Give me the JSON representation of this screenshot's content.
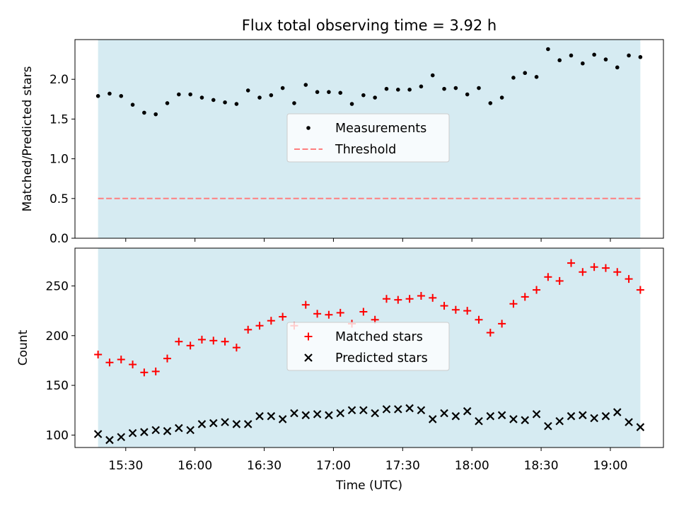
{
  "chart_data": {
    "type": "scatter",
    "title": "Flux total observing time = 3.92 h",
    "xlabel": "Time (UTC)",
    "x_tick_labels": [
      "15:30",
      "16:00",
      "16:30",
      "17:00",
      "17:30",
      "18:00",
      "18:30",
      "19:00"
    ],
    "times": [
      "15:18",
      "15:23",
      "15:28",
      "15:33",
      "15:38",
      "15:43",
      "15:48",
      "15:53",
      "15:58",
      "16:03",
      "16:08",
      "16:13",
      "16:18",
      "16:23",
      "16:28",
      "16:33",
      "16:38",
      "16:43",
      "16:48",
      "16:53",
      "16:58",
      "17:03",
      "17:08",
      "17:13",
      "17:18",
      "17:23",
      "17:28",
      "17:33",
      "17:38",
      "17:43",
      "17:48",
      "17:53",
      "17:58",
      "18:03",
      "18:08",
      "18:13",
      "18:18",
      "18:23",
      "18:28",
      "18:33",
      "18:38",
      "18:43",
      "18:48",
      "18:53",
      "18:58",
      "19:03",
      "19:08",
      "19:13"
    ],
    "observing_window": {
      "start": "15:18",
      "end": "19:13",
      "color": "#add8e6"
    },
    "panels": [
      {
        "ylabel": "Matched/Predicted stars",
        "ylim": [
          0,
          2.5
        ],
        "yticks": [
          0.0,
          0.5,
          1.0,
          1.5,
          2.0
        ],
        "ytick_labels": [
          "0.0",
          "0.5",
          "1.0",
          "1.5",
          "2.0"
        ],
        "legend_position": "center",
        "series": [
          {
            "name": "Measurements",
            "marker": "dot",
            "color": "#000000",
            "values": [
              1.79,
              1.82,
              1.79,
              1.68,
              1.58,
              1.56,
              1.7,
              1.81,
              1.81,
              1.77,
              1.74,
              1.71,
              1.69,
              1.86,
              1.77,
              1.8,
              1.89,
              1.7,
              1.93,
              1.84,
              1.84,
              1.83,
              1.69,
              1.8,
              1.77,
              1.88,
              1.87,
              1.87,
              1.91,
              2.05,
              1.88,
              1.89,
              1.81,
              1.89,
              1.7,
              1.77,
              2.02,
              2.08,
              2.03,
              2.38,
              2.24,
              2.3,
              2.2,
              2.31,
              2.25,
              2.15,
              2.3,
              2.28
            ]
          },
          {
            "name": "Threshold",
            "marker": "dashed-line",
            "color": "#ff7f7f",
            "value": 0.5
          }
        ]
      },
      {
        "ylabel": "Count",
        "ylim": [
          87.5,
          288
        ],
        "yticks": [
          100,
          150,
          200,
          250
        ],
        "ytick_labels": [
          "100",
          "150",
          "200",
          "250"
        ],
        "legend_position": "center",
        "series": [
          {
            "name": "Matched stars",
            "marker": "plus",
            "color": "#ff0000",
            "values": [
              181,
              173,
              176,
              171,
              163,
              164,
              177,
              194,
              190,
              196,
              195,
              194,
              188,
              206,
              210,
              215,
              219,
              210,
              231,
              222,
              221,
              223,
              212,
              224,
              216,
              237,
              236,
              237,
              240,
              238,
              230,
              226,
              225,
              216,
              203,
              212,
              232,
              239,
              246,
              259,
              255,
              273,
              264,
              269,
              268,
              264,
              257,
              246
            ]
          },
          {
            "name": "Predicted stars",
            "marker": "x",
            "color": "#000000",
            "values": [
              101,
              95,
              98,
              102,
              103,
              105,
              104,
              107,
              105,
              111,
              112,
              113,
              111,
              111,
              119,
              119,
              116,
              122,
              120,
              121,
              120,
              122,
              125,
              125,
              122,
              126,
              126,
              127,
              125,
              116,
              122,
              119,
              124,
              114,
              119,
              120,
              116,
              115,
              121,
              109,
              114,
              119,
              120,
              117,
              119,
              123,
              113,
              108
            ]
          }
        ]
      }
    ]
  }
}
